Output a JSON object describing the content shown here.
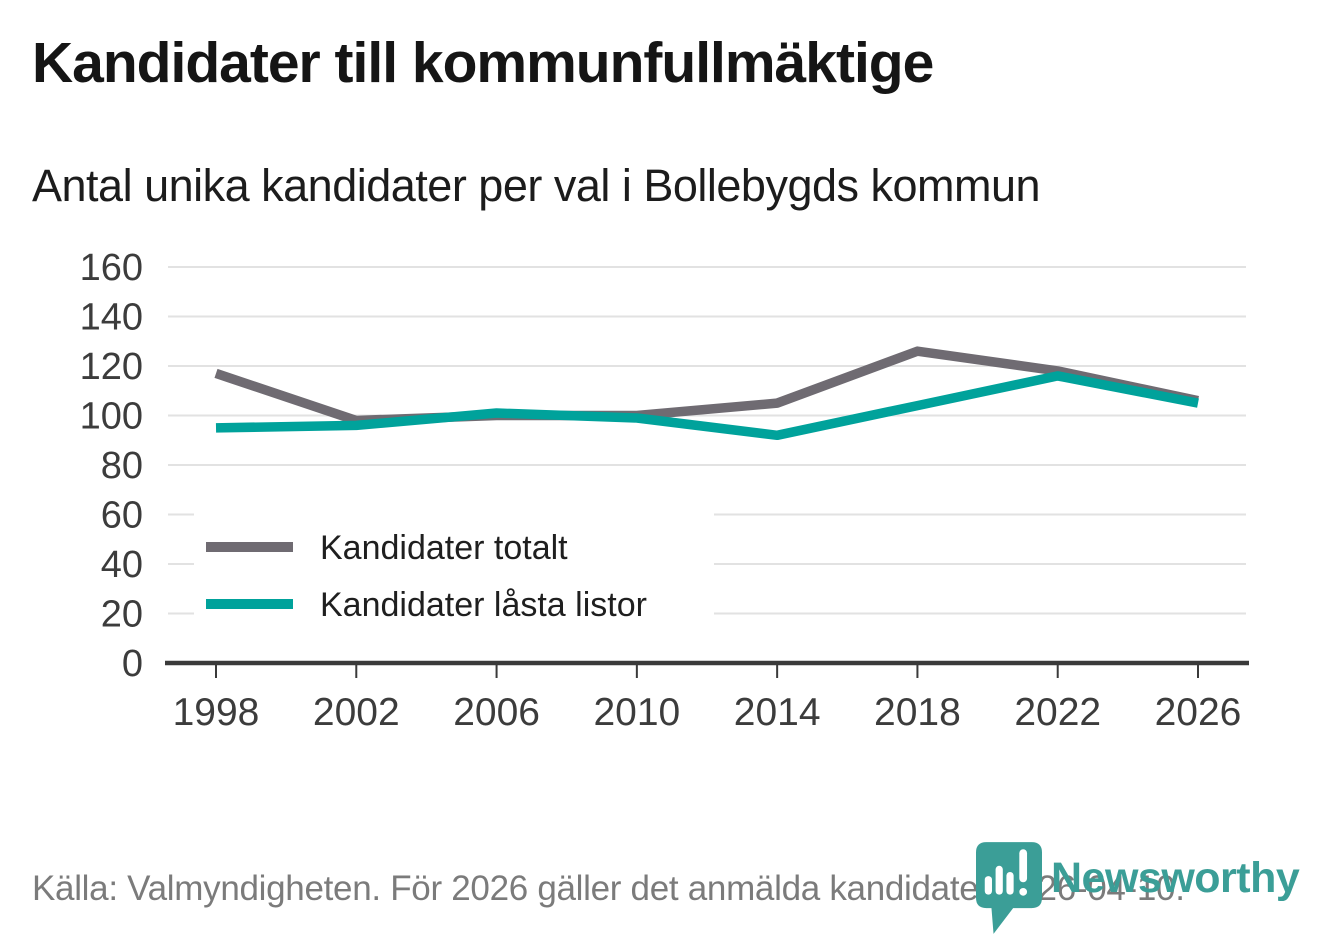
{
  "header": {
    "title": "Kandidater till kommunfullmäktige",
    "subtitle": "Antal unika kandidater per val i Bollebygds kommun"
  },
  "chart_data": {
    "type": "line",
    "title": "Kandidater till kommunfullmäktige",
    "subtitle": "Antal unika kandidater per val i Bollebygds kommun",
    "categories": [
      "1998",
      "2002",
      "2006",
      "2010",
      "2014",
      "2018",
      "2022",
      "2026"
    ],
    "series": [
      {
        "name": "Kandidater totalt",
        "color": "#6F6B72",
        "values": [
          117,
          98,
          100,
          100,
          105,
          126,
          118,
          106
        ]
      },
      {
        "name": "Kandidater låsta listor",
        "color": "#00A29B",
        "values": [
          95,
          96,
          101,
          99,
          92,
          104,
          116,
          105
        ]
      }
    ],
    "xlabel": "",
    "ylabel": "",
    "ylim": [
      0,
      160
    ],
    "yticks": [
      0,
      20,
      40,
      60,
      80,
      100,
      120,
      140,
      160
    ],
    "grid": "horizontal",
    "legend_position": "inside-left-middle"
  },
  "footer": {
    "source_text": "Källa: Valmyndigheten. För 2026 gäller det anmälda kandidater 2026-04-10."
  },
  "logo": {
    "wordmark": "Newsworthy",
    "icon": "newsworthy-pin-chart-icon",
    "color": "#3B9E97"
  },
  "colors": {
    "background": "#FFFFFF",
    "title": "#151515",
    "subtitle": "#1C1C1C",
    "axis": "#3A3A3A",
    "tick_label": "#3C3C3C",
    "gridline": "#E2E2E2",
    "legend_text": "#1F1F1F",
    "footer_text": "#7B7B7B"
  }
}
